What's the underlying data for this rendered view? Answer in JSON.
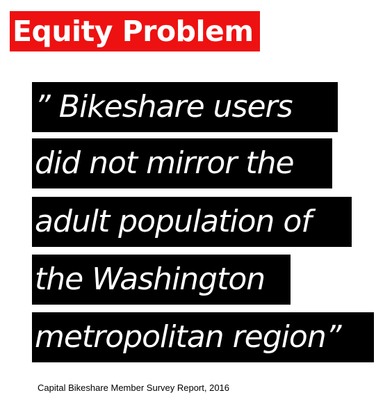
{
  "title": "Equity Problem",
  "quote": {
    "lines": [
      "” Bikeshare users",
      "did not mirror the",
      "adult population of",
      "the Washington",
      "metropolitan region”"
    ]
  },
  "source": "Capital Bikeshare Member Survey Report, 2016",
  "colors": {
    "title_background": "#ee1111",
    "quote_background": "#000000",
    "text_light": "#ffffff",
    "text_dark": "#000000"
  }
}
